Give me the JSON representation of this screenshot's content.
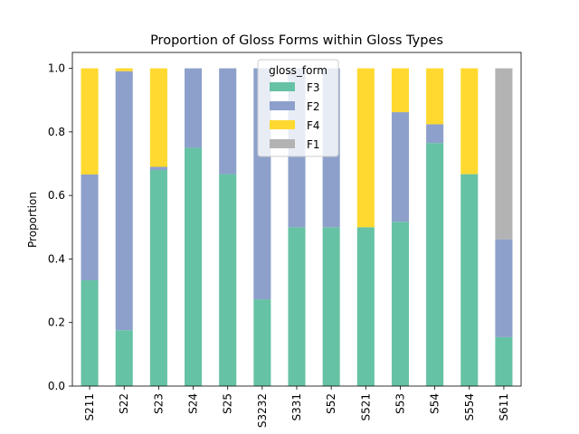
{
  "colors": {
    "F3": "#66c2a5",
    "F2": "#8da0cb",
    "F4": "#ffd92f",
    "F1": "#b3b3b3"
  },
  "chart_data": {
    "type": "bar",
    "stacked": true,
    "title": "Proportion of Gloss Forms within Gloss Types",
    "xlabel": "",
    "ylabel": "Proportion",
    "ylim": [
      0,
      1.05
    ],
    "yticks": [
      "0.0",
      "0.2",
      "0.4",
      "0.6",
      "0.8",
      "1.0"
    ],
    "grid": false,
    "legend": {
      "title": "gloss_form",
      "placement": "top-center"
    },
    "categories": [
      "S211",
      "S22",
      "S23",
      "S24",
      "S25",
      "S3232",
      "S331",
      "S52",
      "S521",
      "S53",
      "S54",
      "S554",
      "S611"
    ],
    "series": [
      {
        "name": "F3",
        "values": [
          0.333,
          0.176,
          0.68,
          0.75,
          0.667,
          0.273,
          0.5,
          0.5,
          0.5,
          0.517,
          0.765,
          0.667,
          0.154
        ]
      },
      {
        "name": "F2",
        "values": [
          0.333,
          0.815,
          0.01,
          0.25,
          0.333,
          0.727,
          0.5,
          0.5,
          0.0,
          0.345,
          0.059,
          0.0,
          0.308
        ]
      },
      {
        "name": "F4",
        "values": [
          0.334,
          0.009,
          0.31,
          0.0,
          0.0,
          0.0,
          0.0,
          0.0,
          0.5,
          0.138,
          0.176,
          0.333,
          0.0
        ]
      },
      {
        "name": "F1",
        "values": [
          0.0,
          0.0,
          0.0,
          0.0,
          0.0,
          0.0,
          0.0,
          0.0,
          0.0,
          0.0,
          0.0,
          0.0,
          0.538
        ]
      }
    ]
  }
}
